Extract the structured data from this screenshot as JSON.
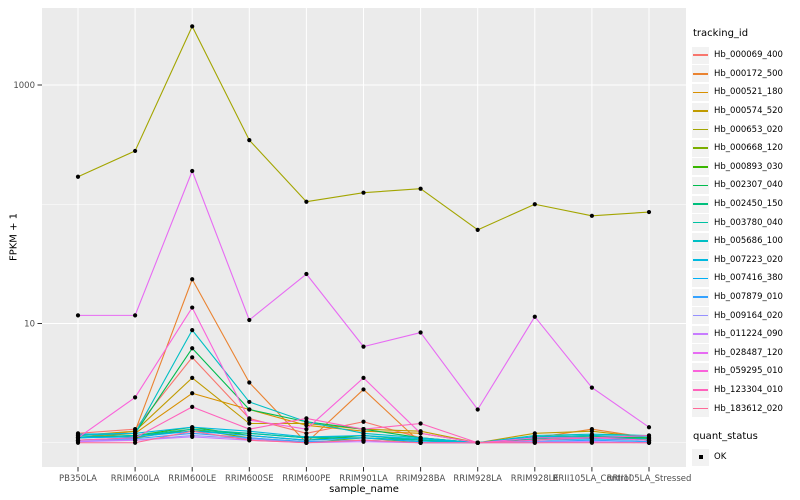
{
  "chart_data": {
    "type": "line",
    "title": "",
    "xlabel": "sample_name",
    "ylabel": "FPKM + 1",
    "legend_title": "tracking_id",
    "legend2_title": "quant_status",
    "legend2_items": [
      {
        "label": "OK"
      }
    ],
    "x_categories": [
      "PB350LA",
      "RRIM600LA",
      "RRIM600LE",
      "RRIM600SE",
      "RRIM600PE",
      "RRIM901LA",
      "RRIM928BA",
      "RRIM928LA",
      "RRIM928LE",
      "RRII105LA_Control",
      "RRII105LA_Stressed"
    ],
    "y_scale": "log10",
    "ylim": [
      0.63,
      4400
    ],
    "y_major_breaks": [
      10,
      1000
    ],
    "y_minor_breaks": [
      1,
      100
    ],
    "grid": true,
    "legend_position": "right",
    "panel_bg": "#EBEBEB",
    "grid_color": "#FFFFFF",
    "point_color": "#000000",
    "axis_text_color": "#4D4D4D",
    "series": [
      {
        "name": "Hb_000069_400",
        "color": "#F8766D",
        "values": [
          1.2,
          1.3,
          5.2,
          1.6,
          1.2,
          1.5,
          1.1,
          1.0,
          1.05,
          1.1,
          1.05
        ]
      },
      {
        "name": "Hb_000172_500",
        "color": "#EA8331",
        "values": [
          1.1,
          1.25,
          23.5,
          3.2,
          1.0,
          2.8,
          1.0,
          1.0,
          1.1,
          1.3,
          1.1
        ]
      },
      {
        "name": "Hb_000521_180",
        "color": "#D89000",
        "values": [
          1.1,
          1.2,
          2.6,
          1.9,
          1.4,
          1.25,
          1.2,
          1.0,
          1.1,
          1.15,
          1.05
        ]
      },
      {
        "name": "Hb_000574_520",
        "color": "#C09B00",
        "values": [
          1.15,
          1.25,
          3.5,
          1.45,
          1.45,
          1.3,
          1.25,
          1.0,
          1.2,
          1.25,
          1.1
        ]
      },
      {
        "name": "Hb_000653_020",
        "color": "#A3A500",
        "values": [
          170,
          280,
          3100,
          345,
          105,
          125,
          135,
          61,
          100,
          80,
          86
        ]
      },
      {
        "name": "Hb_000668_120",
        "color": "#7CAE00",
        "values": [
          1.05,
          1.1,
          1.3,
          1.1,
          1.0,
          1.1,
          1.0,
          1.0,
          1.05,
          1.1,
          1.05
        ]
      },
      {
        "name": "Hb_000893_030",
        "color": "#39B600",
        "values": [
          1.1,
          1.15,
          1.35,
          1.15,
          1.05,
          1.15,
          1.05,
          1.0,
          1.12,
          1.15,
          1.1
        ]
      },
      {
        "name": "Hb_002307_040",
        "color": "#00BB4E",
        "values": [
          1.15,
          1.2,
          6.2,
          1.9,
          1.5,
          1.3,
          1.1,
          1.0,
          1.12,
          1.15,
          1.08
        ]
      },
      {
        "name": "Hb_002450_150",
        "color": "#00BF7D",
        "values": [
          1.1,
          1.15,
          1.25,
          1.2,
          1.1,
          1.1,
          1.05,
          1.0,
          1.08,
          1.12,
          1.05
        ]
      },
      {
        "name": "Hb_003780_040",
        "color": "#00C1A3",
        "values": [
          1.12,
          1.15,
          1.3,
          1.2,
          1.1,
          1.15,
          1.05,
          1.0,
          1.1,
          1.12,
          1.08
        ]
      },
      {
        "name": "Hb_005686_100",
        "color": "#00BFC4",
        "values": [
          1.15,
          1.2,
          8.8,
          2.2,
          1.5,
          1.2,
          1.1,
          1.0,
          1.15,
          1.18,
          1.15
        ]
      },
      {
        "name": "Hb_007223_020",
        "color": "#00BAE0",
        "values": [
          1.18,
          1.2,
          1.35,
          1.25,
          1.12,
          1.15,
          1.08,
          1.0,
          1.12,
          1.15,
          1.12
        ]
      },
      {
        "name": "Hb_007416_380",
        "color": "#00B0F6",
        "values": [
          1.1,
          1.12,
          1.25,
          1.15,
          1.05,
          1.1,
          1.02,
          1.0,
          1.05,
          1.08,
          1.05
        ]
      },
      {
        "name": "Hb_007879_010",
        "color": "#35A2FF",
        "values": [
          1.05,
          1.08,
          1.2,
          1.1,
          1.02,
          1.05,
          1.0,
          1.0,
          1.02,
          1.05,
          1.02
        ]
      },
      {
        "name": "Hb_009164_020",
        "color": "#9590FF",
        "values": [
          1.05,
          1.05,
          1.15,
          1.08,
          1.0,
          1.05,
          1.0,
          1.0,
          1.02,
          1.02,
          1.0
        ]
      },
      {
        "name": "Hb_011224_090",
        "color": "#C77CFF",
        "values": [
          1.02,
          1.05,
          1.12,
          1.05,
          1.0,
          1.02,
          1.0,
          1.0,
          1.0,
          1.02,
          1.0
        ]
      },
      {
        "name": "Hb_028487_120",
        "color": "#E76BF3",
        "values": [
          11.7,
          11.7,
          190,
          10.7,
          26,
          6.4,
          8.4,
          1.9,
          11.4,
          2.9,
          1.35
        ]
      },
      {
        "name": "Hb_059295_010",
        "color": "#FA62DB",
        "values": [
          1.1,
          2.4,
          13.6,
          1.55,
          1.3,
          3.5,
          1.2,
          1.0,
          1.1,
          1.1,
          1.05
        ]
      },
      {
        "name": "Hb_123304_010",
        "color": "#FF62BC",
        "values": [
          1.05,
          1.1,
          2.0,
          1.3,
          1.6,
          1.3,
          1.45,
          1.0,
          1.05,
          1.1,
          1.15
        ]
      },
      {
        "name": "Hb_183612_020",
        "color": "#FF6A98",
        "values": [
          1.0,
          1.0,
          1.25,
          1.05,
          1.0,
          1.05,
          1.0,
          1.0,
          1.0,
          1.0,
          1.0
        ]
      }
    ]
  }
}
